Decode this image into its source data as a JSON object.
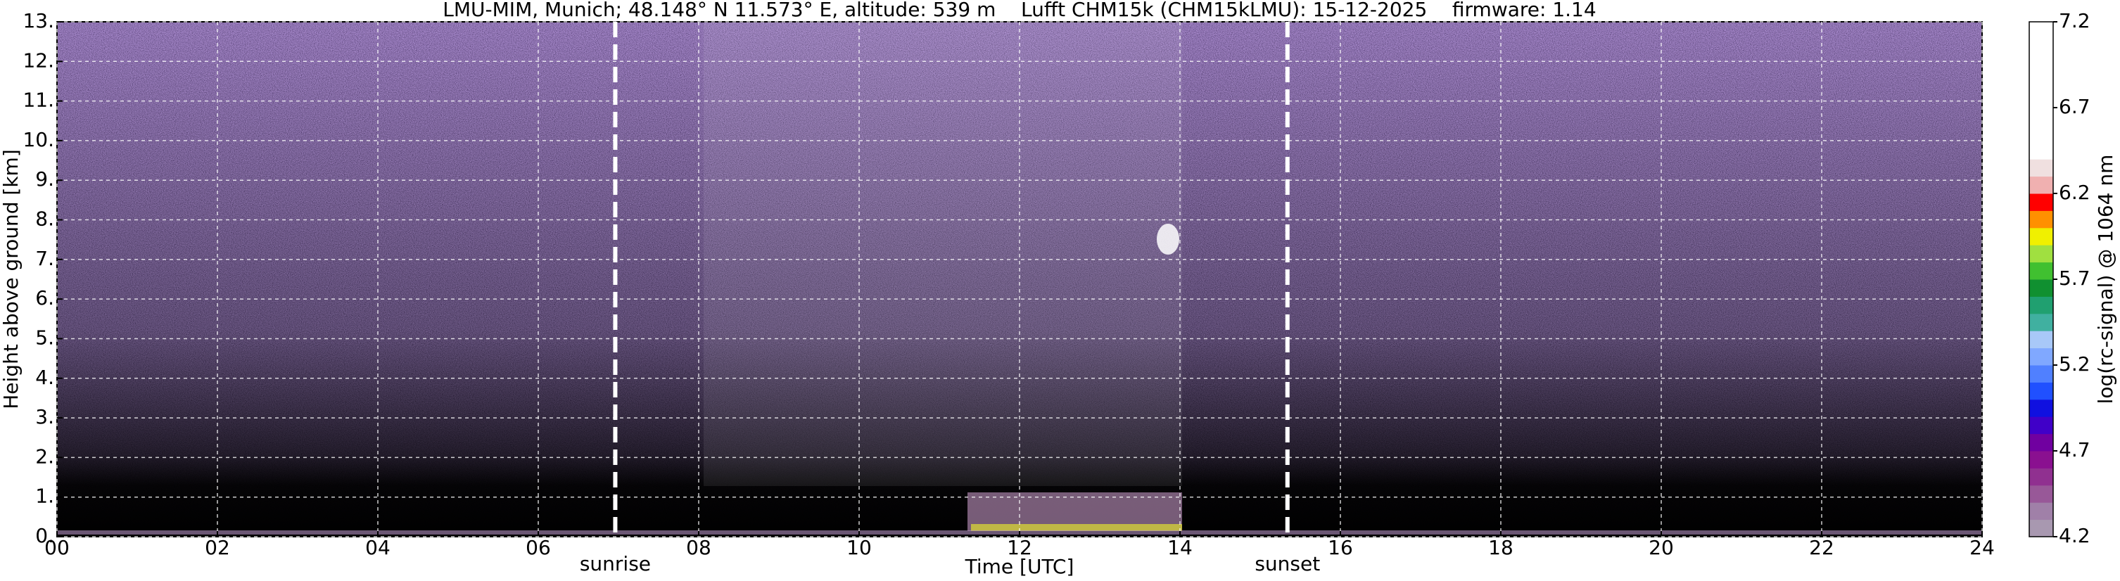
{
  "chart_data": {
    "type": "heatmap",
    "title": "LMU-MIM, Munich; 48.148° N 11.573° E, altitude: 539 m    Lufft CHM15k (CHM15kLMU): 15-12-2025    firmware: 1.14",
    "xlabel": "Time [UTC]",
    "ylabel": "Height above ground [km]",
    "xlim": [
      0,
      24
    ],
    "xticks": [
      {
        "value": 0,
        "label": "00"
      },
      {
        "value": 2,
        "label": "02"
      },
      {
        "value": 4,
        "label": "04"
      },
      {
        "value": 6,
        "label": "06"
      },
      {
        "value": 8,
        "label": "08"
      },
      10,
      12,
      14,
      16,
      18,
      20,
      22,
      24
    ],
    "ylim": [
      0,
      13
    ],
    "yticks": [
      {
        "value": 0,
        "label": "0."
      },
      {
        "value": 1,
        "label": "1."
      },
      {
        "value": 2,
        "label": "2."
      },
      {
        "value": 3,
        "label": "3."
      },
      {
        "value": 4,
        "label": "4."
      },
      {
        "value": 5,
        "label": "5."
      },
      {
        "value": 6,
        "label": "6."
      },
      {
        "value": 7,
        "label": "7."
      },
      {
        "value": 8,
        "label": "8."
      },
      {
        "value": 9,
        "label": "9."
      },
      {
        "value": 10,
        "label": "10."
      },
      {
        "value": 11,
        "label": "11."
      },
      {
        "value": 12,
        "label": "12."
      },
      {
        "value": 13,
        "label": "13."
      }
    ],
    "grid": true,
    "annotations": [
      {
        "text": "sunrise",
        "x": 6.96
      },
      {
        "text": "sunset",
        "x": 15.34
      }
    ],
    "colorbar": {
      "label": "log(rc-signal) @ 1064 nm",
      "lim": [
        4.2,
        7.2
      ],
      "ticks": [
        4.2,
        4.7,
        5.2,
        5.7,
        6.2,
        6.7,
        7.2
      ],
      "colors": [
        "#a898b0",
        "#a080a8",
        "#985898",
        "#903090",
        "#8a1090",
        "#7000a0",
        "#4000c8",
        "#1010e0",
        "#2050ff",
        "#5080ff",
        "#80a8ff",
        "#a8c8f8",
        "#40b0a0",
        "#20a070",
        "#109030",
        "#40c030",
        "#a0e040",
        "#f0f000",
        "#ff9000",
        "#ff0000",
        "#f0b0b0",
        "#f0e0e0",
        "#ffffff",
        "#ffffff",
        "#ffffff",
        "#ffffff",
        "#ffffff",
        "#ffffff",
        "#ffffff",
        "#ffffff"
      ]
    }
  }
}
